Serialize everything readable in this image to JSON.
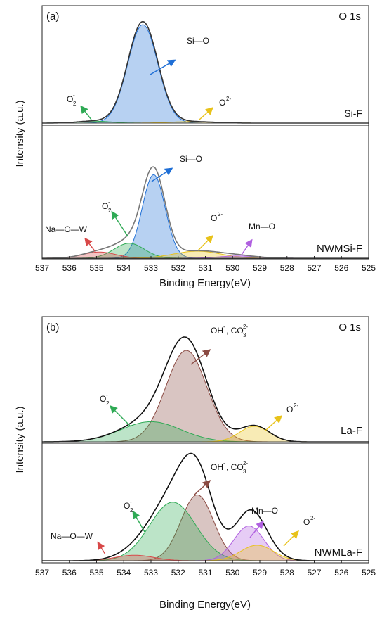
{
  "chart_data": [
    {
      "type": "area",
      "panel": "(a)",
      "core_level": "O 1s",
      "xlabel": "Binding Energy(eV)",
      "ylabel": "Intensity (a.u.)",
      "x_reversed": true,
      "xlim": [
        537,
        525
      ],
      "xticks": [
        "537",
        "536",
        "535",
        "534",
        "533",
        "532",
        "531",
        "530",
        "529",
        "528",
        "527",
        "526",
        "525"
      ],
      "spectra": [
        {
          "sample": "Si-F",
          "envelope_color": "#333333",
          "components": [
            {
              "label": "Si—O",
              "center": 533.3,
              "height": 1.0,
              "sigma": 0.55,
              "color": "#1f6fd6"
            },
            {
              "label": "O2-",
              "center": 531.5,
              "height": 0.015,
              "sigma": 0.8,
              "color": "#e8c21a"
            },
            {
              "label": "O2-",
              "label_type": "superoxide",
              "center": 535.1,
              "height": 0.02,
              "sigma": 0.6,
              "color": "#2faa55"
            }
          ]
        },
        {
          "sample": "NWMSi-F",
          "envelope_color": "#777777",
          "components": [
            {
              "label": "Si—O",
              "center": 532.9,
              "height": 0.95,
              "sigma": 0.42,
              "color": "#1f6fd6"
            },
            {
              "label": "O2-",
              "label_type": "superoxide",
              "center": 533.8,
              "height": 0.17,
              "sigma": 0.55,
              "color": "#2faa55"
            },
            {
              "label": "Na—O—W",
              "center": 534.9,
              "height": 0.07,
              "sigma": 0.6,
              "color": "#d84848"
            },
            {
              "label": "O2-",
              "center": 531.3,
              "height": 0.08,
              "sigma": 0.85,
              "color": "#e8c21a"
            },
            {
              "label": "Mn—O",
              "center": 529.8,
              "height": 0.025,
              "sigma": 0.7,
              "color": "#b060e0"
            }
          ]
        }
      ]
    },
    {
      "type": "area",
      "panel": "(b)",
      "core_level": "O 1s",
      "xlabel": "Binding Energy(eV)",
      "ylabel": "Intensity (a.u.)",
      "x_reversed": true,
      "xlim": [
        537,
        525
      ],
      "xticks": [
        "537",
        "536",
        "535",
        "534",
        "533",
        "532",
        "531",
        "530",
        "529",
        "528",
        "527",
        "526",
        "525"
      ],
      "spectra": [
        {
          "sample": "La-F",
          "envelope_color": "#111111",
          "components": [
            {
              "label": "OH-, CO32-",
              "center": 531.7,
              "height": 1.0,
              "sigma": 0.75,
              "color": "#8a4a42"
            },
            {
              "label": "O2-",
              "label_type": "superoxide",
              "center": 533.0,
              "height": 0.22,
              "sigma": 1.1,
              "color": "#2faa55"
            },
            {
              "label": "O2-",
              "center": 529.2,
              "height": 0.17,
              "sigma": 0.55,
              "color": "#e8c21a"
            }
          ]
        },
        {
          "sample": "NWMLa-F",
          "envelope_color": "#111111",
          "components": [
            {
              "label": "OH-, CO32-",
              "center": 531.3,
              "height": 0.72,
              "sigma": 0.6,
              "color": "#8a4a42"
            },
            {
              "label": "O2-",
              "label_type": "superoxide",
              "center": 532.2,
              "height": 0.64,
              "sigma": 0.85,
              "color": "#2faa55"
            },
            {
              "label": "Mn—O",
              "center": 529.4,
              "height": 0.38,
              "sigma": 0.55,
              "color": "#b060e0"
            },
            {
              "label": "O2-",
              "center": 529.1,
              "height": 0.17,
              "sigma": 0.6,
              "color": "#e8c21a"
            },
            {
              "label": "Na—O—W",
              "center": 533.6,
              "height": 0.06,
              "sigma": 0.7,
              "color": "#d84848"
            }
          ]
        }
      ]
    }
  ],
  "text": {
    "panel_a": "(a)",
    "panel_b": "(b)",
    "core_level_a": "O 1s",
    "core_level_b": "O 1s",
    "sample_a_top": "Si-F",
    "sample_a_bottom": "NWMSi-F",
    "sample_b_top": "La-F",
    "sample_b_bottom": "NWMLa-F",
    "ylabel_a": "Intensity (a.u.)",
    "ylabel_b": "Intensity (a.u.)",
    "xlabel_a": "Binding Energy(eV)",
    "xlabel_b": "Binding Energy(eV)",
    "lbl_si_o": "Si—O",
    "lbl_o": "O",
    "lbl_o_sub": "2",
    "lbl_o_sup_minus": "-",
    "lbl_o2minus": "O",
    "lbl_o2minus_sup": "2-",
    "lbl_na_o_w": "Na—O—W",
    "lbl_mn_o": "Mn—O",
    "lbl_oh": "OH",
    "lbl_oh_sup": "-",
    "lbl_co": ", CO",
    "lbl_co_sub": "3",
    "lbl_co_sup": "2-"
  },
  "colors": {
    "si_o": "#1f6fd6",
    "superoxide": "#2faa55",
    "oxide": "#e8c21a",
    "na_o_w": "#d84848",
    "mn_o": "#b060e0",
    "oh_co3": "#8a4a42"
  }
}
